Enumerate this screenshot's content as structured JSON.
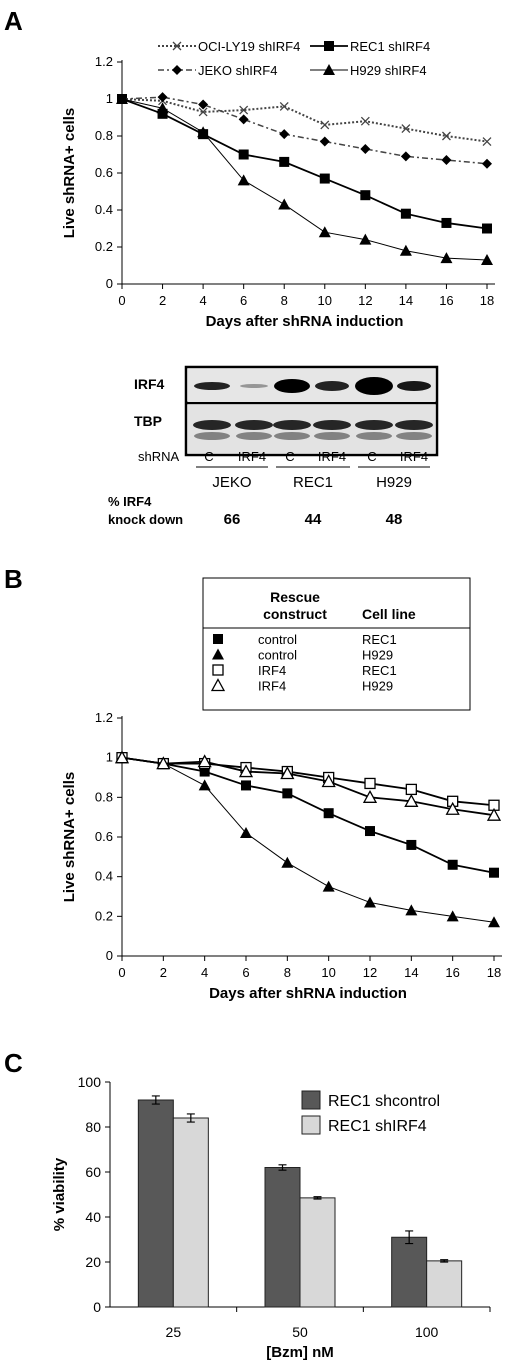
{
  "colors": {
    "bar_dark": "#585858",
    "bar_light": "#d8d8d8",
    "line_black": "#000000",
    "line_gray": "#444444"
  },
  "panels": {
    "a": {
      "letter": "A",
      "blot": {
        "row_labels": [
          "IRF4",
          "TBP"
        ],
        "shrna_label": "shRNA",
        "lanes": [
          "C",
          "IRF4",
          "C",
          "IRF4",
          "C",
          "IRF4"
        ],
        "cell_lines": [
          "JEKO",
          "REC1",
          "H929"
        ],
        "kd_label_line1": "% IRF4",
        "kd_label_line2": "knock down",
        "kd_values": [
          "66",
          "44",
          "48"
        ]
      }
    },
    "b": {
      "letter": "B",
      "legend_table": {
        "header_col1_line1": "Rescue",
        "header_col1_line2": "construct",
        "header_col2": "Cell line",
        "rows": [
          {
            "symbol": "filled-square-icon",
            "construct": "control",
            "cell_line": "REC1"
          },
          {
            "symbol": "filled-triangle-icon",
            "construct": "control",
            "cell_line": "H929"
          },
          {
            "symbol": "open-square-icon",
            "construct": "IRF4",
            "cell_line": "REC1"
          },
          {
            "symbol": "open-triangle-icon",
            "construct": "IRF4",
            "cell_line": "H929"
          }
        ]
      }
    },
    "c": {
      "letter": "C"
    }
  },
  "chart_data": [
    {
      "id": "A",
      "type": "line",
      "xlabel": "Days after shRNA induction",
      "ylabel": "Live shRNA+ cells",
      "x": [
        0,
        2,
        4,
        6,
        8,
        10,
        12,
        14,
        16,
        18
      ],
      "xlim": [
        0,
        18
      ],
      "ylim": [
        0,
        1.2
      ],
      "yticks": [
        "0",
        "0.2",
        "0.4",
        "0.6",
        "0.8",
        "1",
        "1.2"
      ],
      "xticks": [
        "0",
        "2",
        "4",
        "6",
        "8",
        "10",
        "12",
        "14",
        "16",
        "18"
      ],
      "grid": false,
      "legend": "top",
      "series": [
        {
          "name": "OCI-LY19 shIRF4",
          "marker": "x",
          "style": "dotted",
          "values": [
            1.0,
            0.99,
            0.93,
            0.94,
            0.96,
            0.86,
            0.88,
            0.84,
            0.8,
            0.77
          ]
        },
        {
          "name": "REC1 shIRF4",
          "marker": "filled-square",
          "style": "solid",
          "values": [
            1.0,
            0.92,
            0.81,
            0.7,
            0.66,
            0.57,
            0.48,
            0.38,
            0.33,
            0.3
          ]
        },
        {
          "name": "JEKO shIRF4",
          "marker": "filled-diamond",
          "style": "dashdot",
          "values": [
            1.0,
            1.01,
            0.97,
            0.89,
            0.81,
            0.77,
            0.73,
            0.69,
            0.67,
            0.65
          ]
        },
        {
          "name": "H929 shIRF4",
          "marker": "filled-triangle",
          "style": "thin",
          "values": [
            1.0,
            0.95,
            0.82,
            0.56,
            0.43,
            0.28,
            0.24,
            0.18,
            0.14,
            0.13
          ]
        }
      ]
    },
    {
      "id": "B",
      "type": "line",
      "xlabel": "Days after shRNA induction",
      "ylabel": "Live shRNA+ cells",
      "x": [
        0,
        2,
        4,
        6,
        8,
        10,
        12,
        14,
        16,
        18
      ],
      "xlim": [
        0,
        18
      ],
      "ylim": [
        0,
        1.2
      ],
      "yticks": [
        "0",
        "0.2",
        "0.4",
        "0.6",
        "0.8",
        "1",
        "1.2"
      ],
      "xticks": [
        "0",
        "2",
        "4",
        "6",
        "8",
        "10",
        "12",
        "14",
        "16",
        "18"
      ],
      "grid": false,
      "series": [
        {
          "marker": "filled-square",
          "style": "solid",
          "values": [
            1.0,
            0.97,
            0.93,
            0.86,
            0.82,
            0.72,
            0.63,
            0.56,
            0.46,
            0.42
          ]
        },
        {
          "marker": "filled-triangle",
          "style": "thin",
          "values": [
            1.0,
            0.97,
            0.86,
            0.62,
            0.47,
            0.35,
            0.27,
            0.23,
            0.2,
            0.17
          ]
        },
        {
          "marker": "open-square",
          "style": "solid",
          "values": [
            1.0,
            0.97,
            0.97,
            0.95,
            0.93,
            0.9,
            0.87,
            0.84,
            0.78,
            0.76
          ]
        },
        {
          "marker": "open-triangle",
          "style": "solid",
          "values": [
            1.0,
            0.97,
            0.98,
            0.93,
            0.92,
            0.88,
            0.8,
            0.78,
            0.74,
            0.71
          ]
        }
      ]
    },
    {
      "id": "C",
      "type": "bar",
      "xlabel": "[Bzm] nM",
      "ylabel": "% viability",
      "categories": [
        "25",
        "50",
        "100"
      ],
      "ylim": [
        0,
        100
      ],
      "yticks": [
        "0",
        "20",
        "40",
        "60",
        "80",
        "100"
      ],
      "grid": false,
      "legend": "top-right",
      "series": [
        {
          "name": "REC1 shcontrol",
          "values": [
            92,
            62,
            31
          ],
          "errors": [
            1.8,
            1.2,
            2.8
          ]
        },
        {
          "name": "REC1 shIRF4",
          "values": [
            84,
            48.5,
            20.5
          ],
          "errors": [
            1.8,
            0.5,
            0.5
          ]
        }
      ]
    }
  ]
}
